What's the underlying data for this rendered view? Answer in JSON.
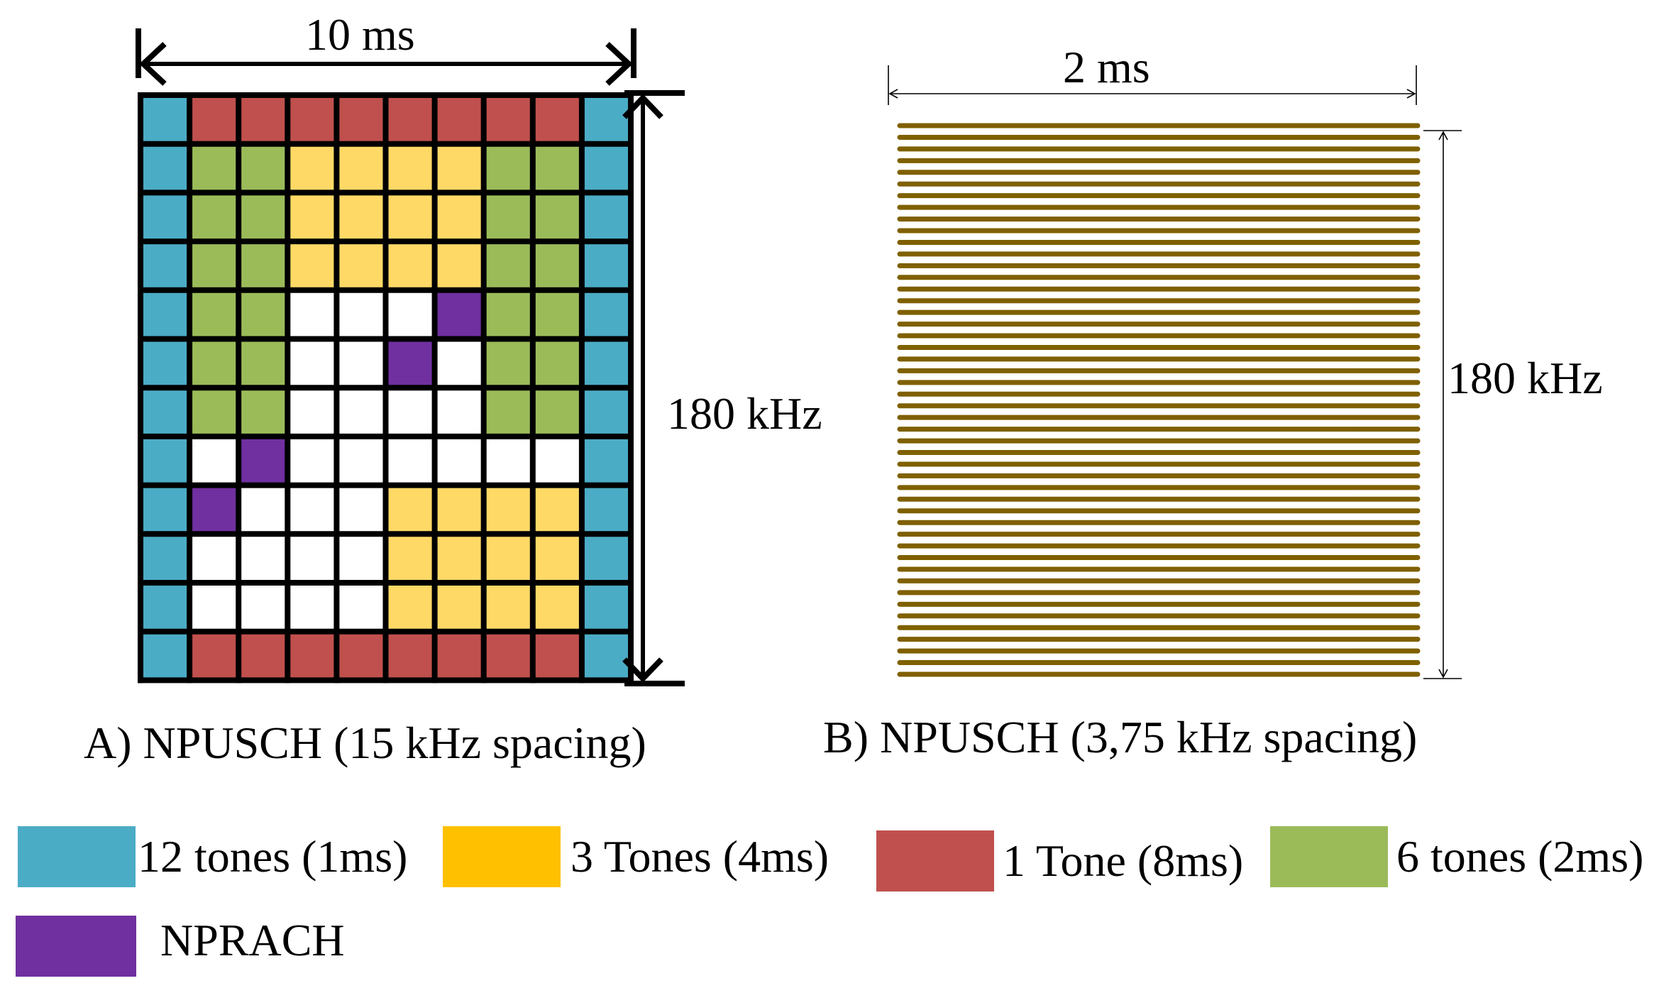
{
  "panel_a": {
    "width_label": "10 ms",
    "height_label": "180 kHz",
    "caption": "A) NPUSCH (15 kHz spacing)",
    "grid": [
      "BRRRRRRRRB",
      "BGGYYYYGGB",
      "BGGYYYYGGB",
      "BGGYYYYGGB",
      "BGGWWWPGGB",
      "BGGWWPWGGB",
      "BGGWWWWGGB",
      "BWPWWWWWWB",
      "BPWWWYYYYB",
      "BWWWWYYYYB",
      "BWWWWYYYYB",
      "BRRRRRRRRB"
    ]
  },
  "panel_b": {
    "width_label": "2 ms",
    "height_label": "180 kHz",
    "caption": "B) NPUSCH (3,75 kHz spacing)",
    "subcarrier_count": 48,
    "line_color": "#7F6000"
  },
  "legend": [
    {
      "key": "B",
      "label": "12 tones (1ms)",
      "color": "#4BACC6"
    },
    {
      "key": "Y",
      "label": "3 Tones (4ms)",
      "color": "#FFC000"
    },
    {
      "key": "R",
      "label": "1 Tone (8ms)",
      "color": "#C0504D"
    },
    {
      "key": "G",
      "label": "6 tones (2ms)",
      "color": "#9BBB59"
    },
    {
      "key": "P",
      "label": "NPRACH",
      "color": "#7030A0"
    }
  ],
  "grid_colors": {
    "B": "#4BACC6",
    "Y": "#FFD966",
    "R": "#C0504D",
    "G": "#9BBB59",
    "P": "#7030A0",
    "W": "#FFFFFF"
  }
}
